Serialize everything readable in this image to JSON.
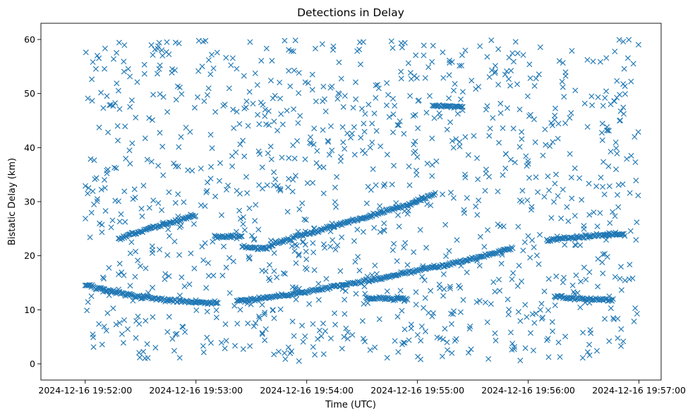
{
  "chart_data": {
    "type": "scatter",
    "title": "Detections in Delay",
    "xlabel": "Time (UTC)",
    "ylabel": "Bistatic Delay (km)",
    "marker": "x",
    "color": "#1f77b4",
    "x_unit": "seconds since 2024-12-16 19:52:00",
    "xlim": [
      -24,
      312
    ],
    "ylim": [
      -3,
      63
    ],
    "x_ticks": [
      {
        "value": 0,
        "label": "2024-12-16 19:52:00"
      },
      {
        "value": 60,
        "label": "2024-12-16 19:53:00"
      },
      {
        "value": 120,
        "label": "2024-12-16 19:54:00"
      },
      {
        "value": 180,
        "label": "2024-12-16 19:55:00"
      },
      {
        "value": 240,
        "label": "2024-12-16 19:56:00"
      },
      {
        "value": 300,
        "label": "2024-12-16 19:57:00"
      }
    ],
    "y_ticks": [
      {
        "value": 0,
        "label": "0"
      },
      {
        "value": 10,
        "label": "10"
      },
      {
        "value": 20,
        "label": "20"
      },
      {
        "value": 30,
        "label": "30"
      },
      {
        "value": 40,
        "label": "40"
      },
      {
        "value": 50,
        "label": "50"
      },
      {
        "value": 60,
        "label": "60"
      }
    ],
    "x_range_data": [
      0,
      300
    ],
    "y_range_data": [
      0.5,
      60
    ],
    "clutter_points_approx": 1150,
    "tracks": [
      {
        "name": "track-low-descending",
        "x": [
          0,
          10,
          20,
          30,
          40,
          50,
          58
        ],
        "y": [
          14.5,
          13.8,
          13.0,
          12.4,
          12.0,
          11.6,
          11.5
        ]
      },
      {
        "name": "track-low-flat",
        "x": [
          58,
          65,
          72
        ],
        "y": [
          11.5,
          11.3,
          11.3
        ]
      },
      {
        "name": "track-main-rising",
        "x": [
          82,
          100,
          120,
          140,
          160,
          180,
          200,
          220,
          232
        ],
        "y": [
          11.6,
          12.3,
          13.3,
          14.6,
          15.8,
          17.3,
          18.6,
          20.3,
          21.5
        ]
      },
      {
        "name": "track-mid-ascending",
        "x": [
          18,
          30,
          45,
          60
        ],
        "y": [
          23.0,
          24.5,
          26.0,
          27.5
        ]
      },
      {
        "name": "track-mid-flat-1",
        "x": [
          70,
          85
        ],
        "y": [
          23.5,
          23.5
        ]
      },
      {
        "name": "track-mid-flat-2",
        "x": [
          85,
          100
        ],
        "y": [
          21.5,
          21.5
        ]
      },
      {
        "name": "track-upper-ascending",
        "x": [
          100,
          115,
          130,
          145,
          160,
          175,
          190
        ],
        "y": [
          22.0,
          23.5,
          25.0,
          26.5,
          28.0,
          29.5,
          31.5
        ]
      },
      {
        "name": "track-right-mid",
        "x": [
          250,
          265,
          280,
          292
        ],
        "y": [
          22.8,
          23.4,
          23.8,
          24.0
        ]
      },
      {
        "name": "track-right-low",
        "x": [
          254,
          270,
          286
        ],
        "y": [
          12.4,
          12.0,
          11.8
        ]
      },
      {
        "name": "track-short-low",
        "x": [
          152,
          175
        ],
        "y": [
          12.2,
          12.0
        ]
      },
      {
        "name": "track-short-high",
        "x": [
          188,
          205
        ],
        "y": [
          47.8,
          47.5
        ]
      }
    ]
  }
}
